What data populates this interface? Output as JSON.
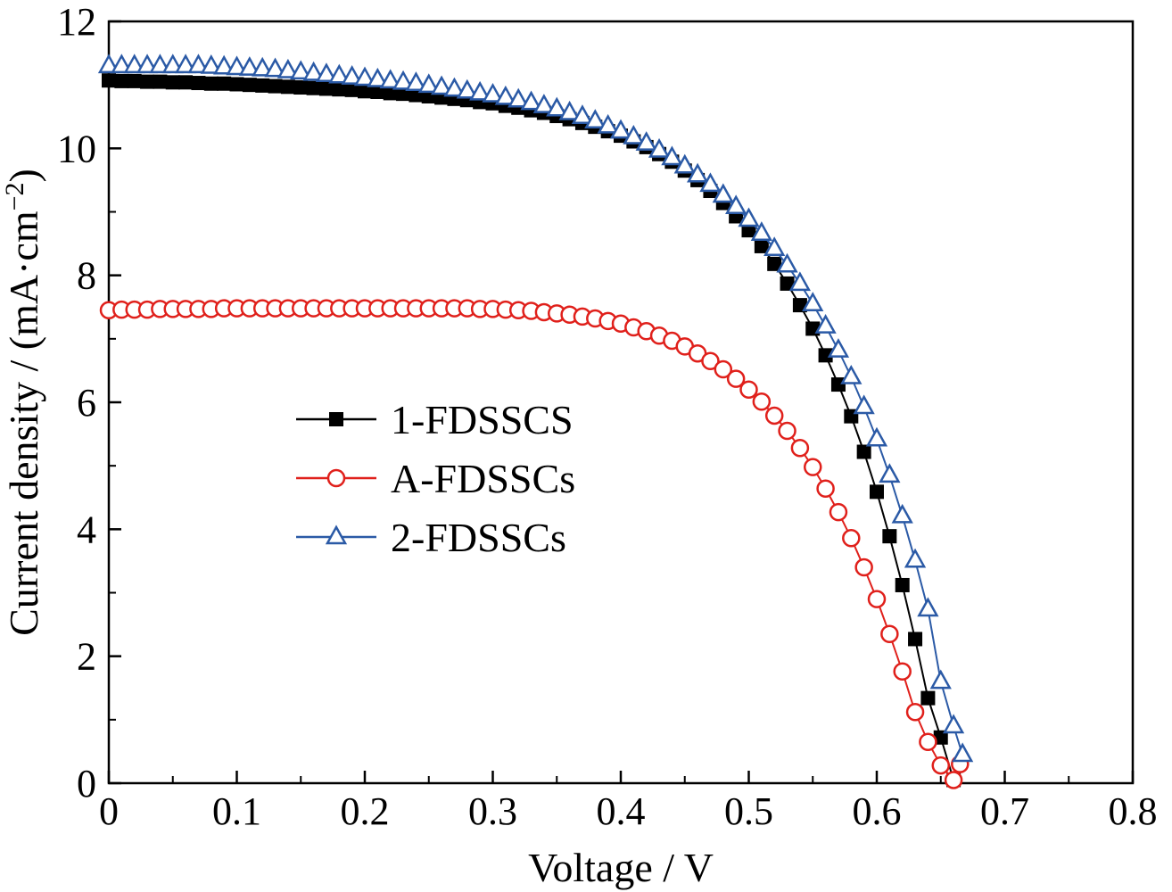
{
  "chart_data": {
    "type": "line",
    "title": "",
    "xlabel": "Voltage / V",
    "ylabel": "Current density / (mA·cm⁻²)",
    "ylabel_main": "Current density / (mA·cm",
    "ylabel_sup": "−2",
    "ylabel_close": ")",
    "xlim": [
      0,
      0.8
    ],
    "ylim": [
      0,
      12
    ],
    "x_ticks": [
      0,
      0.1,
      0.2,
      0.3,
      0.4,
      0.5,
      0.6,
      0.7,
      0.8
    ],
    "x_tick_labels": [
      "0",
      "0.1",
      "0.2",
      "0.3",
      "0.4",
      "0.5",
      "0.6",
      "0.7",
      "0.8"
    ],
    "y_ticks": [
      0,
      2,
      4,
      6,
      8,
      10,
      12
    ],
    "y_tick_labels": [
      "0",
      "2",
      "4",
      "6",
      "8",
      "10",
      "12"
    ],
    "grid": false,
    "legend_position": "center-left",
    "series": [
      {
        "name": "1-FDSSCS",
        "color": "#000000",
        "marker": "square-filled",
        "x": [
          0,
          0.01,
          0.02,
          0.03,
          0.04,
          0.05,
          0.06,
          0.07,
          0.08,
          0.09,
          0.1,
          0.11,
          0.12,
          0.13,
          0.14,
          0.15,
          0.16,
          0.17,
          0.18,
          0.19,
          0.2,
          0.21,
          0.22,
          0.23,
          0.24,
          0.25,
          0.26,
          0.27,
          0.28,
          0.29,
          0.3,
          0.31,
          0.32,
          0.33,
          0.34,
          0.35,
          0.36,
          0.37,
          0.38,
          0.39,
          0.4,
          0.41,
          0.42,
          0.43,
          0.44,
          0.45,
          0.46,
          0.47,
          0.48,
          0.49,
          0.5,
          0.51,
          0.52,
          0.53,
          0.54,
          0.55,
          0.56,
          0.57,
          0.58,
          0.59,
          0.6,
          0.61,
          0.62,
          0.63,
          0.64,
          0.65,
          0.66
        ],
        "y": [
          11.07,
          11.06,
          11.06,
          11.05,
          11.05,
          11.04,
          11.04,
          11.03,
          11.02,
          11.02,
          11.01,
          11.0,
          10.99,
          10.98,
          10.97,
          10.96,
          10.95,
          10.94,
          10.93,
          10.92,
          10.9,
          10.89,
          10.87,
          10.86,
          10.84,
          10.82,
          10.8,
          10.78,
          10.76,
          10.73,
          10.71,
          10.67,
          10.64,
          10.6,
          10.56,
          10.51,
          10.46,
          10.4,
          10.34,
          10.27,
          10.2,
          10.11,
          10.02,
          9.91,
          9.79,
          9.65,
          9.5,
          9.33,
          9.14,
          8.93,
          8.71,
          8.46,
          8.18,
          7.87,
          7.53,
          7.16,
          6.74,
          6.28,
          5.78,
          5.22,
          4.59,
          3.89,
          3.12,
          2.27,
          1.34,
          0.72,
          0.05
        ]
      },
      {
        "name": "A-FDSSCs",
        "color": "#e0201b",
        "marker": "circle-open",
        "x": [
          0,
          0.01,
          0.02,
          0.03,
          0.04,
          0.05,
          0.06,
          0.07,
          0.08,
          0.09,
          0.1,
          0.11,
          0.12,
          0.13,
          0.14,
          0.15,
          0.16,
          0.17,
          0.18,
          0.19,
          0.2,
          0.21,
          0.22,
          0.23,
          0.24,
          0.25,
          0.26,
          0.27,
          0.28,
          0.29,
          0.3,
          0.31,
          0.32,
          0.33,
          0.34,
          0.35,
          0.36,
          0.37,
          0.38,
          0.39,
          0.4,
          0.41,
          0.42,
          0.43,
          0.44,
          0.45,
          0.46,
          0.47,
          0.48,
          0.49,
          0.5,
          0.51,
          0.52,
          0.53,
          0.54,
          0.55,
          0.56,
          0.57,
          0.58,
          0.59,
          0.6,
          0.61,
          0.62,
          0.63,
          0.64,
          0.65,
          0.66,
          0.665
        ],
        "y": [
          7.45,
          7.46,
          7.46,
          7.46,
          7.47,
          7.47,
          7.47,
          7.47,
          7.47,
          7.48,
          7.48,
          7.48,
          7.48,
          7.48,
          7.48,
          7.48,
          7.48,
          7.48,
          7.48,
          7.48,
          7.48,
          7.48,
          7.48,
          7.48,
          7.48,
          7.48,
          7.48,
          7.48,
          7.48,
          7.47,
          7.47,
          7.46,
          7.45,
          7.44,
          7.42,
          7.4,
          7.38,
          7.35,
          7.32,
          7.28,
          7.24,
          7.18,
          7.12,
          7.05,
          6.97,
          6.88,
          6.77,
          6.65,
          6.52,
          6.37,
          6.2,
          6.01,
          5.79,
          5.55,
          5.28,
          4.98,
          4.64,
          4.27,
          3.86,
          3.4,
          2.9,
          2.35,
          1.76,
          1.12,
          0.65,
          0.28,
          0.05,
          0.3
        ]
      },
      {
        "name": "2-FDSSCs",
        "color": "#2b5aa6",
        "marker": "triangle-open",
        "x": [
          0,
          0.01,
          0.02,
          0.03,
          0.04,
          0.05,
          0.06,
          0.07,
          0.08,
          0.09,
          0.1,
          0.11,
          0.12,
          0.13,
          0.14,
          0.15,
          0.16,
          0.17,
          0.18,
          0.19,
          0.2,
          0.21,
          0.22,
          0.23,
          0.24,
          0.25,
          0.26,
          0.27,
          0.28,
          0.29,
          0.3,
          0.31,
          0.32,
          0.33,
          0.34,
          0.35,
          0.36,
          0.37,
          0.38,
          0.39,
          0.4,
          0.41,
          0.42,
          0.43,
          0.44,
          0.45,
          0.46,
          0.47,
          0.48,
          0.49,
          0.5,
          0.51,
          0.52,
          0.53,
          0.54,
          0.55,
          0.56,
          0.57,
          0.58,
          0.59,
          0.6,
          0.61,
          0.62,
          0.63,
          0.64,
          0.65,
          0.66,
          0.667
        ],
        "y": [
          11.3,
          11.3,
          11.3,
          11.3,
          11.3,
          11.3,
          11.3,
          11.3,
          11.29,
          11.28,
          11.27,
          11.26,
          11.25,
          11.24,
          11.22,
          11.2,
          11.18,
          11.16,
          11.14,
          11.12,
          11.1,
          11.08,
          11.06,
          11.04,
          11.02,
          10.99,
          10.96,
          10.93,
          10.9,
          10.87,
          10.84,
          10.8,
          10.76,
          10.72,
          10.67,
          10.62,
          10.56,
          10.5,
          10.43,
          10.35,
          10.27,
          10.18,
          10.08,
          9.97,
          9.85,
          9.72,
          9.58,
          9.43,
          9.26,
          9.08,
          8.88,
          8.66,
          8.42,
          8.16,
          7.87,
          7.55,
          7.2,
          6.82,
          6.4,
          5.93,
          5.42,
          4.85,
          4.21,
          3.51,
          2.74,
          1.6,
          0.9,
          0.45
        ]
      }
    ]
  }
}
